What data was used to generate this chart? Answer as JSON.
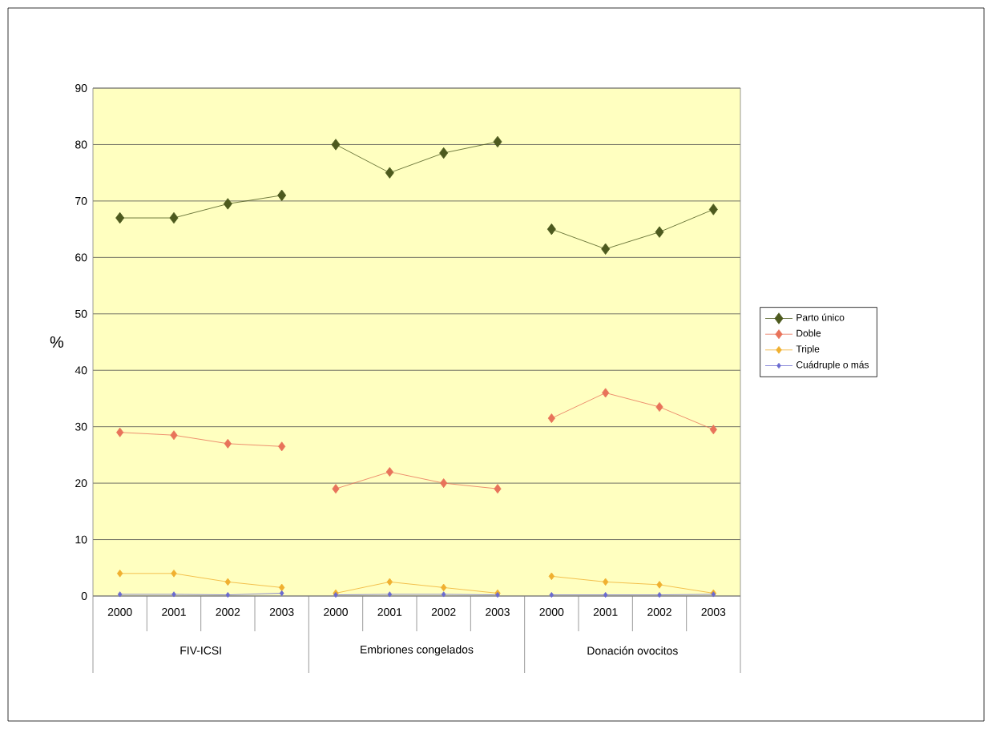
{
  "chart_data": {
    "type": "line",
    "ylabel": "%",
    "categories": [
      "2000",
      "2001",
      "2002",
      "2003",
      "2000",
      "2001",
      "2002",
      "2003",
      "2000",
      "2001",
      "2002",
      "2003"
    ],
    "annotations": [
      "FIV-ICSI",
      "Embriones congelados",
      "Donación ovocitos"
    ],
    "series": [
      {
        "name": "Parto único",
        "color": "#4d5a1e",
        "values": [
          67,
          67,
          69.5,
          71,
          80,
          75,
          78.5,
          80.5,
          65,
          61.5,
          64.5,
          68.5
        ]
      },
      {
        "name": "Doble",
        "color": "#e8735a",
        "values": [
          29,
          28.5,
          27,
          26.5,
          19,
          22,
          20,
          19,
          31.5,
          36,
          33.5,
          29.5
        ]
      },
      {
        "name": "Triple",
        "color": "#f0b030",
        "values": [
          4,
          4,
          2.5,
          1.5,
          0.5,
          2.5,
          1.5,
          0.5,
          3.5,
          2.5,
          2,
          0.5
        ]
      },
      {
        "name": "Cuádruple o más",
        "color": "#6a6ad0",
        "values": [
          0.3,
          0.3,
          0.2,
          0.5,
          0.2,
          0.3,
          0.3,
          0.2,
          0.2,
          0.2,
          0.2,
          0.3
        ]
      }
    ],
    "ylim": [
      0,
      90
    ],
    "yticks": [
      0,
      10,
      20,
      30,
      40,
      50,
      60,
      70,
      80,
      90
    ],
    "grid": "y",
    "legend": "right",
    "marker": "diamond"
  }
}
